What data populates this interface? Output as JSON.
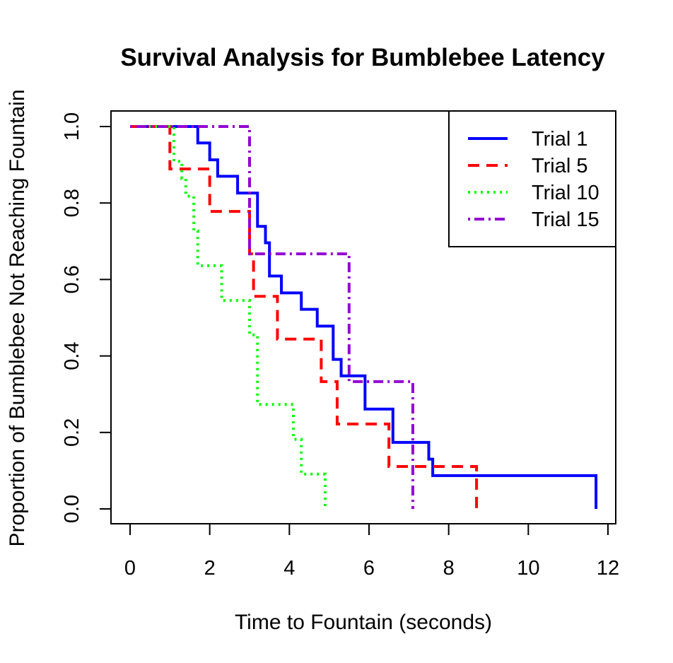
{
  "chart_data": {
    "type": "line",
    "subtype": "step",
    "title": "Survival Analysis for Bumblebee Latency",
    "xlabel": "Time to Fountain (seconds)",
    "ylabel": "Proportion of Bumblebee Not Reaching Fountain",
    "xlim": [
      0,
      12
    ],
    "ylim": [
      0,
      1
    ],
    "xticks": [
      "0",
      "2",
      "4",
      "6",
      "8",
      "10",
      "12"
    ],
    "yticks": [
      "0.0",
      "0.2",
      "0.4",
      "0.6",
      "0.8",
      "1.0"
    ],
    "grid": false,
    "legend_position": "top-right",
    "series": [
      {
        "name": "Trial 1",
        "color": "#0000ff",
        "dash": "solid",
        "times": [
          1.7,
          2.0,
          2.2,
          2.7,
          3.2,
          3.4,
          3.5,
          3.8,
          4.3,
          4.7,
          5.1,
          5.3,
          5.9,
          6.6,
          7.5,
          7.6,
          11.7
        ],
        "survival": [
          0.957,
          0.913,
          0.87,
          0.826,
          0.739,
          0.696,
          0.609,
          0.565,
          0.522,
          0.478,
          0.391,
          0.348,
          0.261,
          0.174,
          0.13,
          0.087,
          0.0
        ]
      },
      {
        "name": "Trial 5",
        "color": "#ff0000",
        "dash": "dashed",
        "times": [
          1.0,
          2.0,
          3.0,
          3.1,
          3.7,
          4.8,
          5.2,
          6.5,
          8.7
        ],
        "survival": [
          0.889,
          0.778,
          0.667,
          0.556,
          0.444,
          0.333,
          0.222,
          0.111,
          0.0
        ]
      },
      {
        "name": "Trial 10",
        "color": "#00ff00",
        "dash": "dotted",
        "times": [
          1.1,
          1.3,
          1.4,
          1.6,
          1.7,
          2.3,
          3.0,
          3.2,
          4.1,
          4.3,
          4.9
        ],
        "survival": [
          0.909,
          0.864,
          0.818,
          0.727,
          0.636,
          0.545,
          0.455,
          0.273,
          0.182,
          0.091,
          0.0
        ]
      },
      {
        "name": "Trial 15",
        "color": "#9400d3",
        "dash": "dotdash",
        "times": [
          3.0,
          5.5,
          7.1
        ],
        "survival": [
          0.667,
          0.333,
          0.0
        ]
      }
    ]
  }
}
